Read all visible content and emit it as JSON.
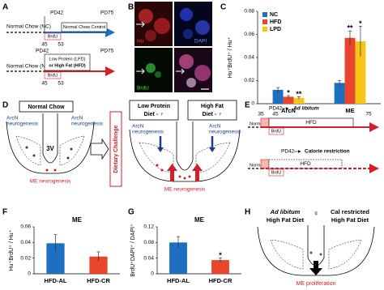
{
  "panel_labels": [
    "A",
    "B",
    "C",
    "D",
    "E",
    "F",
    "G",
    "H"
  ],
  "panel_a": {
    "pd42": "PD42",
    "pd75": "PD75",
    "nc_label": "Normal Chow (NC)",
    "control": "Normal Chow Control",
    "brdu": "BrdU",
    "day45": "45",
    "day53": "53",
    "diet": [
      "Low Protein (LPD)",
      "or High Fat (HFD)"
    ]
  },
  "panel_b": {
    "hu": "Hu",
    "dapi": "DAPI",
    "brdu": "BrdU"
  },
  "panel_d": {
    "normal_chow": "Normal Chow",
    "arcn": [
      "ArcN",
      "neurogenesis"
    ],
    "v3": "3V",
    "me": "ME neurogenesis",
    "challenge": "Dietary Challenge",
    "low_protein": [
      "Low Protein",
      "Diet - ♀"
    ],
    "high_fat": [
      "High Fat",
      "Diet - ♀"
    ]
  },
  "panel_e": {
    "pd42": "PD42",
    "ad_libitum": "Ad libitum",
    "calorie": "Calorie restriction",
    "d35": "35",
    "d45": "45",
    "d75": "75",
    "hfd": "HFD",
    "brdu": "BrdU",
    "nc_label": "Normal Chow (NC)"
  },
  "panel_h": {
    "ad_lib": [
      "Ad libitum",
      "High Fat Diet"
    ],
    "cal": [
      "Cal restricted",
      "High Fat Diet"
    ],
    "female": "♀",
    "me_prolif": "ME proliferation"
  },
  "chart_data": [
    {
      "type": "bar",
      "ylabel": "Hu⁺BrdU⁺ / Hu⁺",
      "categories": [
        "ArcN",
        "ME"
      ],
      "series": [
        {
          "name": "NC",
          "color": "#1f6fc0",
          "values": [
            0.012,
            0.018
          ],
          "errors": [
            0.002,
            0.002
          ],
          "significance": [
            null,
            null
          ]
        },
        {
          "name": "HFD",
          "color": "#e8452c",
          "values": [
            0.006,
            0.057
          ],
          "errors": [
            0.001,
            0.006
          ],
          "significance": [
            "*",
            "**"
          ]
        },
        {
          "name": "LPD",
          "color": "#f5c518",
          "values": [
            0.005,
            0.054
          ],
          "errors": [
            0.001,
            0.013
          ],
          "significance": [
            "**",
            "*"
          ]
        }
      ],
      "ylim": [
        0,
        0.08
      ],
      "yticks": [
        0,
        0.02,
        0.04,
        0.06,
        0.08
      ],
      "legend": "top-left"
    },
    {
      "type": "bar",
      "title": "ME",
      "ylabel": "Hu⁺BrdU⁺ / Hu⁺",
      "categories": [
        "HFD-AL",
        "HFD-CR"
      ],
      "colors": [
        "#1f6fc0",
        "#e8452c"
      ],
      "values": [
        0.039,
        0.022
      ],
      "errors": [
        0.011,
        0.006
      ],
      "significance": [
        null,
        null
      ],
      "ylim": [
        0,
        0.06
      ],
      "yticks": [
        0,
        0.02,
        0.04,
        0.06
      ]
    },
    {
      "type": "bar",
      "title": "ME",
      "ylabel": "BrdU⁺DAPI⁺ / DAPI⁺",
      "categories": [
        "HFD-AL",
        "HFD-CR"
      ],
      "colors": [
        "#1f6fc0",
        "#e8452c"
      ],
      "values": [
        0.08,
        0.035
      ],
      "errors": [
        0.015,
        0.005
      ],
      "significance": [
        null,
        "*"
      ],
      "ylim": [
        0,
        0.12
      ],
      "yticks": [
        0,
        0.04,
        0.08,
        0.12
      ]
    }
  ]
}
